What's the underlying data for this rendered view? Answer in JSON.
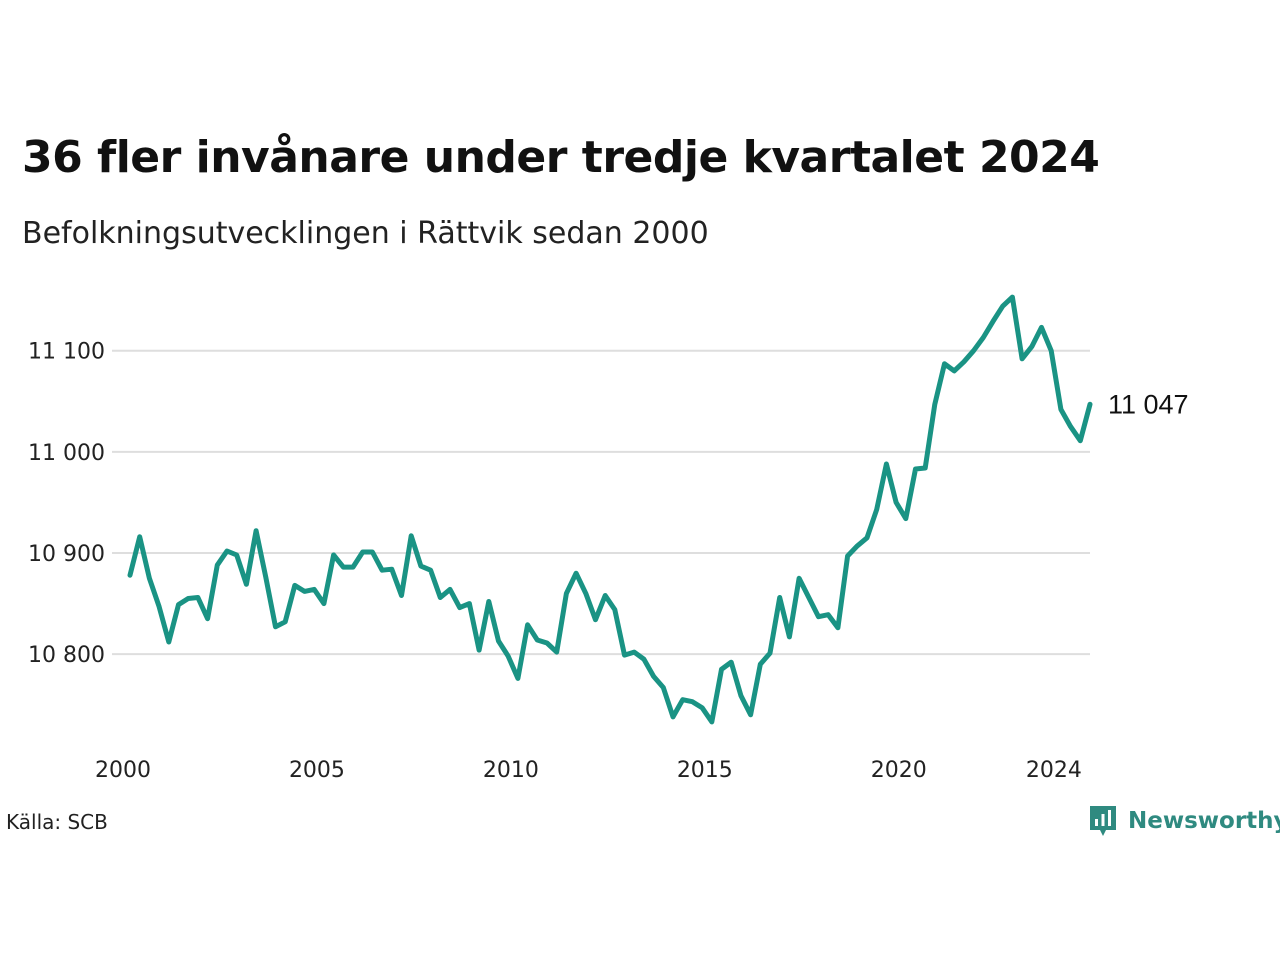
{
  "title": "36 fler invånare under tredje kvartalet 2024",
  "subtitle": "Befolkningsutvecklingen i Rättvik sedan 2000",
  "source": "Källa: SCB",
  "brand": {
    "name": "Newsworthy",
    "icon": "newsworthy-logo-icon",
    "color": "#2f8a80"
  },
  "colors": {
    "line": "#1a9384",
    "grid": "#dedede",
    "text": "#222222"
  },
  "chart_data": {
    "type": "line",
    "title": "36 fler invånare under tredje kvartalet 2024",
    "subtitle": "Befolkningsutvecklingen i Rättvik sedan 2000",
    "xlabel": "",
    "ylabel": "",
    "xlim": [
      2000,
      2024.75
    ],
    "ylim": [
      10725,
      11160
    ],
    "grid": "horizontal",
    "xticks": [
      2000,
      2005,
      2010,
      2015,
      2020,
      2024
    ],
    "xtick_labels": [
      "2000",
      "2005",
      "2010",
      "2015",
      "2020",
      "2024"
    ],
    "yticks": [
      10800,
      10900,
      11000,
      11100
    ],
    "ytick_labels": [
      "10 800",
      "10 900",
      "11 000",
      "11 100"
    ],
    "end_label": "11 047",
    "series": [
      {
        "values": [
          [
            2000.0,
            10878
          ],
          [
            2000.25,
            10916
          ],
          [
            2000.5,
            10875
          ],
          [
            2000.75,
            10847
          ],
          [
            2001.0,
            10812
          ],
          [
            2001.25,
            10849
          ],
          [
            2001.5,
            10855
          ],
          [
            2001.75,
            10856
          ],
          [
            2002.0,
            10835
          ],
          [
            2002.25,
            10888
          ],
          [
            2002.5,
            10902
          ],
          [
            2002.75,
            10898
          ],
          [
            2003.0,
            10869
          ],
          [
            2003.25,
            10922
          ],
          [
            2003.5,
            10876
          ],
          [
            2003.75,
            10827
          ],
          [
            2004.0,
            10832
          ],
          [
            2004.25,
            10868
          ],
          [
            2004.5,
            10862
          ],
          [
            2004.75,
            10864
          ],
          [
            2005.0,
            10850
          ],
          [
            2005.25,
            10898
          ],
          [
            2005.5,
            10886
          ],
          [
            2005.75,
            10886
          ],
          [
            2006.0,
            10901
          ],
          [
            2006.25,
            10901
          ],
          [
            2006.5,
            10883
          ],
          [
            2006.75,
            10884
          ],
          [
            2007.0,
            10858
          ],
          [
            2007.25,
            10917
          ],
          [
            2007.5,
            10887
          ],
          [
            2007.75,
            10883
          ],
          [
            2008.0,
            10856
          ],
          [
            2008.25,
            10864
          ],
          [
            2008.5,
            10846
          ],
          [
            2008.75,
            10850
          ],
          [
            2009.0,
            10804
          ],
          [
            2009.25,
            10852
          ],
          [
            2009.5,
            10813
          ],
          [
            2009.75,
            10798
          ],
          [
            2010.0,
            10776
          ],
          [
            2010.25,
            10829
          ],
          [
            2010.5,
            10814
          ],
          [
            2010.75,
            10811
          ],
          [
            2011.0,
            10802
          ],
          [
            2011.25,
            10860
          ],
          [
            2011.5,
            10880
          ],
          [
            2011.75,
            10860
          ],
          [
            2012.0,
            10834
          ],
          [
            2012.25,
            10858
          ],
          [
            2012.5,
            10844
          ],
          [
            2012.75,
            10799
          ],
          [
            2013.0,
            10802
          ],
          [
            2013.25,
            10795
          ],
          [
            2013.5,
            10778
          ],
          [
            2013.75,
            10767
          ],
          [
            2014.0,
            10738
          ],
          [
            2014.25,
            10755
          ],
          [
            2014.5,
            10753
          ],
          [
            2014.75,
            10747
          ],
          [
            2015.0,
            10733
          ],
          [
            2015.25,
            10785
          ],
          [
            2015.5,
            10792
          ],
          [
            2015.75,
            10759
          ],
          [
            2016.0,
            10740
          ],
          [
            2016.25,
            10790
          ],
          [
            2016.5,
            10801
          ],
          [
            2016.75,
            10856
          ],
          [
            2017.0,
            10817
          ],
          [
            2017.25,
            10875
          ],
          [
            2017.5,
            10856
          ],
          [
            2017.75,
            10837
          ],
          [
            2018.0,
            10839
          ],
          [
            2018.25,
            10826
          ],
          [
            2018.5,
            10897
          ],
          [
            2018.75,
            10907
          ],
          [
            2019.0,
            10915
          ],
          [
            2019.25,
            10943
          ],
          [
            2019.5,
            10988
          ],
          [
            2019.75,
            10950
          ],
          [
            2020.0,
            10934
          ],
          [
            2020.25,
            10983
          ],
          [
            2020.5,
            10984
          ],
          [
            2020.75,
            11047
          ],
          [
            2021.0,
            11087
          ],
          [
            2021.25,
            11080
          ],
          [
            2021.5,
            11089
          ],
          [
            2021.75,
            11100
          ],
          [
            2022.0,
            11113
          ],
          [
            2022.25,
            11129
          ],
          [
            2022.5,
            11144
          ],
          [
            2022.75,
            11153
          ],
          [
            2023.0,
            11092
          ],
          [
            2023.25,
            11104
          ],
          [
            2023.5,
            11123
          ],
          [
            2023.75,
            11100
          ],
          [
            2024.0,
            11042
          ],
          [
            2024.25,
            11025
          ],
          [
            2024.5,
            11011
          ],
          [
            2024.75,
            11047
          ]
        ]
      }
    ]
  }
}
